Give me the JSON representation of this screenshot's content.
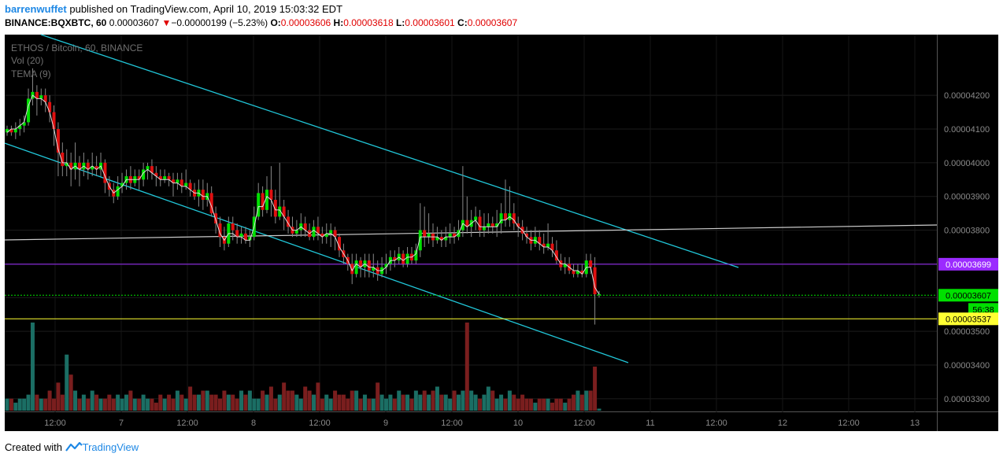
{
  "header": {
    "user": "barrenwuffet",
    "published_text": "published on TradingView.com, April 10, 2019 15:03:32 EDT",
    "symbol": "BINANCE:BQXBTC, 60",
    "last": "0.00003607",
    "change_arrow": "▼",
    "change": "−0.00000199 (−5.23%)",
    "o_label": "O:",
    "o": "0.00003606",
    "h_label": "H:",
    "h": "0.00003618",
    "l_label": "L:",
    "l": "0.00003601",
    "c_label": "C:",
    "c": "0.00003607"
  },
  "legend": {
    "line1": "ETHOS / Bitcoin, 60, BINANCE",
    "line2": "Vol (20)",
    "line3": "TEMA (9)"
  },
  "footer": {
    "created_with": "Created with",
    "brand": "TradingView"
  },
  "colors": {
    "background": "#000000",
    "up": "#00e000",
    "down": "#e01010",
    "vol_up": "#1b6e64",
    "vol_down": "#7a1e1e",
    "channel": "#21c7d9",
    "horizontal_line": "#cccccc",
    "purple_level": "#9b2bff",
    "current_price": "#00e000",
    "yellow_level": "#ffff33"
  },
  "chart_data": {
    "type": "candlestick",
    "y_axis": {
      "range": [
        3.26e-05,
        4.38e-05
      ],
      "ticks": [
        "0.00004200",
        "0.00004100",
        "0.00004000",
        "0.00003900",
        "0.00003800",
        "0.00003700",
        "0.00003600",
        "0.00003500",
        "0.00003400",
        "0.00003300"
      ]
    },
    "x_axis": {
      "ticks": [
        "12:00",
        "7",
        "12:00",
        "8",
        "12:00",
        "9",
        "12:00",
        "10",
        "12:00",
        "11",
        "12:00",
        "12",
        "12:00",
        "13"
      ]
    },
    "price_labels": {
      "purple": "0.00003699",
      "current": "0.00003607",
      "countdown": "56:38",
      "yellow": "0.00003537"
    },
    "levels": {
      "purple": 3.699e-05,
      "current": 3.607e-05,
      "yellow": 3.537e-05
    },
    "candles": [
      [
        4.09e-05,
        4.1e-05,
        4.11e-05,
        4.08e-05
      ],
      [
        4.1e-05,
        4.09e-05,
        4.11e-05,
        4.08e-05
      ],
      [
        4.09e-05,
        4.1e-05,
        4.12e-05,
        4.07e-05
      ],
      [
        4.1e-05,
        4.11e-05,
        4.13e-05,
        4.08e-05
      ],
      [
        4.11e-05,
        4.12e-05,
        4.14e-05,
        4.09e-05
      ],
      [
        4.12e-05,
        4.19e-05,
        4.22e-05,
        4.11e-05
      ],
      [
        4.19e-05,
        4.21e-05,
        4.28e-05,
        4.17e-05
      ],
      [
        4.21e-05,
        4.19e-05,
        4.23e-05,
        4.14e-05
      ],
      [
        4.19e-05,
        4.2e-05,
        4.22e-05,
        4.17e-05
      ],
      [
        4.2e-05,
        4.18e-05,
        4.22e-05,
        4.15e-05
      ],
      [
        4.18e-05,
        4.15e-05,
        4.2e-05,
        4.12e-05
      ],
      [
        4.15e-05,
        4.1e-05,
        4.17e-05,
        4.05e-05
      ],
      [
        4.1e-05,
        4.03e-05,
        4.12e-05,
        3.96e-05
      ],
      [
        4.03e-05,
        3.99e-05,
        4.06e-05,
        3.96e-05
      ],
      [
        3.99e-05,
        4e-05,
        4.04e-05,
        3.96e-05
      ],
      [
        4e-05,
        3.98e-05,
        4.03e-05,
        3.93e-05
      ],
      [
        3.98e-05,
        4e-05,
        4.06e-05,
        3.95e-05
      ],
      [
        4e-05,
        3.98e-05,
        4.02e-05,
        3.93e-05
      ],
      [
        3.98e-05,
        4e-05,
        4.03e-05,
        3.96e-05
      ],
      [
        4e-05,
        3.98e-05,
        4.01e-05,
        3.95e-05
      ],
      [
        3.98e-05,
        3.99e-05,
        4.03e-05,
        3.96e-05
      ],
      [
        3.99e-05,
        3.98e-05,
        4.02e-05,
        3.96e-05
      ],
      [
        3.98e-05,
        4e-05,
        4.03e-05,
        3.96e-05
      ],
      [
        4e-05,
        3.94e-05,
        4.01e-05,
        3.91e-05
      ],
      [
        3.94e-05,
        3.92e-05,
        3.96e-05,
        3.9e-05
      ],
      [
        3.92e-05,
        3.9e-05,
        3.94e-05,
        3.88e-05
      ],
      [
        3.9e-05,
        3.93e-05,
        3.96e-05,
        3.89e-05
      ],
      [
        3.93e-05,
        3.94e-05,
        3.97e-05,
        3.91e-05
      ],
      [
        3.94e-05,
        3.96e-05,
        3.98e-05,
        3.92e-05
      ],
      [
        3.96e-05,
        3.94e-05,
        3.99e-05,
        3.92e-05
      ],
      [
        3.94e-05,
        3.96e-05,
        3.98e-05,
        3.93e-05
      ],
      [
        3.96e-05,
        3.95e-05,
        3.98e-05,
        3.92e-05
      ],
      [
        3.95e-05,
        3.98e-05,
        4e-05,
        3.93e-05
      ],
      [
        3.98e-05,
        3.99e-05,
        4e-05,
        3.95e-05
      ],
      [
        3.99e-05,
        3.97e-05,
        4.01e-05,
        3.95e-05
      ],
      [
        3.97e-05,
        3.96e-05,
        3.99e-05,
        3.93e-05
      ],
      [
        3.96e-05,
        3.95e-05,
        3.98e-05,
        3.93e-05
      ],
      [
        3.95e-05,
        3.96e-05,
        3.98e-05,
        3.94e-05
      ],
      [
        3.96e-05,
        3.95e-05,
        3.97e-05,
        3.93e-05
      ],
      [
        3.95e-05,
        3.94e-05,
        3.97e-05,
        3.9e-05
      ],
      [
        3.94e-05,
        3.95e-05,
        3.97e-05,
        3.92e-05
      ],
      [
        3.95e-05,
        3.93e-05,
        3.97e-05,
        3.91e-05
      ],
      [
        3.93e-05,
        3.94e-05,
        3.98e-05,
        3.92e-05
      ],
      [
        3.94e-05,
        3.92e-05,
        3.95e-05,
        3.9e-05
      ],
      [
        3.92e-05,
        3.9e-05,
        3.94e-05,
        3.89e-05
      ],
      [
        3.9e-05,
        3.92e-05,
        3.95e-05,
        3.87e-05
      ],
      [
        3.92e-05,
        3.89e-05,
        3.95e-05,
        3.86e-05
      ],
      [
        3.89e-05,
        3.91e-05,
        3.94e-05,
        3.87e-05
      ],
      [
        3.91e-05,
        3.85e-05,
        3.93e-05,
        3.84e-05
      ],
      [
        3.85e-05,
        3.82e-05,
        3.87e-05,
        3.79e-05
      ],
      [
        3.82e-05,
        3.78e-05,
        3.84e-05,
        3.75e-05
      ],
      [
        3.78e-05,
        3.76e-05,
        3.81e-05,
        3.74e-05
      ],
      [
        3.76e-05,
        3.82e-05,
        3.84e-05,
        3.75e-05
      ],
      [
        3.82e-05,
        3.8e-05,
        3.84e-05,
        3.77e-05
      ],
      [
        3.8e-05,
        3.78e-05,
        3.82e-05,
        3.76e-05
      ],
      [
        3.78e-05,
        3.79e-05,
        3.81e-05,
        3.76e-05
      ],
      [
        3.79e-05,
        3.77e-05,
        3.81e-05,
        3.76e-05
      ],
      [
        3.77e-05,
        3.78e-05,
        3.8e-05,
        3.75e-05
      ],
      [
        3.78e-05,
        3.84e-05,
        3.87e-05,
        3.77e-05
      ],
      [
        3.84e-05,
        3.91e-05,
        3.94e-05,
        3.83e-05
      ],
      [
        3.91e-05,
        3.86e-05,
        3.93e-05,
        3.84e-05
      ],
      [
        3.86e-05,
        3.92e-05,
        3.96e-05,
        3.85e-05
      ],
      [
        3.92e-05,
        3.89e-05,
        3.99e-05,
        3.84e-05
      ],
      [
        3.89e-05,
        3.84e-05,
        3.92e-05,
        3.82e-05
      ],
      [
        3.84e-05,
        3.87e-05,
        4e-05,
        3.83e-05
      ],
      [
        3.87e-05,
        3.84e-05,
        3.89e-05,
        3.8e-05
      ],
      [
        3.84e-05,
        3.81e-05,
        3.86e-05,
        3.79e-05
      ],
      [
        3.81e-05,
        3.79e-05,
        3.84e-05,
        3.78e-05
      ],
      [
        3.79e-05,
        3.8e-05,
        3.83e-05,
        3.78e-05
      ],
      [
        3.8e-05,
        3.82e-05,
        3.85e-05,
        3.78e-05
      ],
      [
        3.82e-05,
        3.8e-05,
        3.84e-05,
        3.78e-05
      ],
      [
        3.8e-05,
        3.78e-05,
        3.82e-05,
        3.77e-05
      ],
      [
        3.78e-05,
        3.81e-05,
        3.83e-05,
        3.77e-05
      ],
      [
        3.81e-05,
        3.79e-05,
        3.84e-05,
        3.77e-05
      ],
      [
        3.79e-05,
        3.78e-05,
        3.81e-05,
        3.76e-05
      ],
      [
        3.78e-05,
        3.79e-05,
        3.82e-05,
        3.76e-05
      ],
      [
        3.79e-05,
        3.8e-05,
        3.82e-05,
        3.75e-05
      ],
      [
        3.8e-05,
        3.78e-05,
        3.81e-05,
        3.74e-05
      ],
      [
        3.78e-05,
        3.74e-05,
        3.79e-05,
        3.72e-05
      ],
      [
        3.74e-05,
        3.72e-05,
        3.76e-05,
        3.7e-05
      ],
      [
        3.72e-05,
        3.7e-05,
        3.73e-05,
        3.68e-05
      ],
      [
        3.7e-05,
        3.67e-05,
        3.73e-05,
        3.64e-05
      ],
      [
        3.67e-05,
        3.71e-05,
        3.73e-05,
        3.66e-05
      ],
      [
        3.71e-05,
        3.69e-05,
        3.72e-05,
        3.66e-05
      ],
      [
        3.69e-05,
        3.71e-05,
        3.73e-05,
        3.66e-05
      ],
      [
        3.71e-05,
        3.68e-05,
        3.73e-05,
        3.66e-05
      ],
      [
        3.68e-05,
        3.69e-05,
        3.73e-05,
        3.66e-05
      ],
      [
        3.69e-05,
        3.67e-05,
        3.71e-05,
        3.65e-05
      ],
      [
        3.67e-05,
        3.69e-05,
        3.72e-05,
        3.66e-05
      ],
      [
        3.69e-05,
        3.7e-05,
        3.73e-05,
        3.67e-05
      ],
      [
        3.7e-05,
        3.72e-05,
        3.74e-05,
        3.68e-05
      ],
      [
        3.72e-05,
        3.71e-05,
        3.74e-05,
        3.69e-05
      ],
      [
        3.71e-05,
        3.73e-05,
        3.75e-05,
        3.7e-05
      ],
      [
        3.73e-05,
        3.7e-05,
        3.74e-05,
        3.69e-05
      ],
      [
        3.7e-05,
        3.73e-05,
        3.75e-05,
        3.69e-05
      ],
      [
        3.73e-05,
        3.71e-05,
        3.75e-05,
        3.7e-05
      ],
      [
        3.71e-05,
        3.74e-05,
        3.76e-05,
        3.7e-05
      ],
      [
        3.74e-05,
        3.8e-05,
        3.88e-05,
        3.72e-05
      ],
      [
        3.8e-05,
        3.78e-05,
        3.87e-05,
        3.75e-05
      ],
      [
        3.78e-05,
        3.79e-05,
        3.85e-05,
        3.76e-05
      ],
      [
        3.79e-05,
        3.77e-05,
        3.82e-05,
        3.75e-05
      ],
      [
        3.77e-05,
        3.78e-05,
        3.81e-05,
        3.76e-05
      ],
      [
        3.78e-05,
        3.77e-05,
        3.8e-05,
        3.75e-05
      ],
      [
        3.77e-05,
        3.78e-05,
        3.81e-05,
        3.75e-05
      ],
      [
        3.78e-05,
        3.79e-05,
        3.82e-05,
        3.76e-05
      ],
      [
        3.79e-05,
        3.78e-05,
        3.81e-05,
        3.76e-05
      ],
      [
        3.78e-05,
        3.8e-05,
        3.83e-05,
        3.77e-05
      ],
      [
        3.8e-05,
        3.83e-05,
        3.99e-05,
        3.78e-05
      ],
      [
        3.83e-05,
        3.81e-05,
        3.9e-05,
        3.79e-05
      ],
      [
        3.81e-05,
        3.83e-05,
        3.86e-05,
        3.78e-05
      ],
      [
        3.83e-05,
        3.84e-05,
        3.87e-05,
        3.8e-05
      ],
      [
        3.84e-05,
        3.8e-05,
        3.86e-05,
        3.78e-05
      ],
      [
        3.8e-05,
        3.81e-05,
        3.85e-05,
        3.78e-05
      ],
      [
        3.81e-05,
        3.82e-05,
        3.85e-05,
        3.79e-05
      ],
      [
        3.82e-05,
        3.81e-05,
        3.84e-05,
        3.79e-05
      ],
      [
        3.81e-05,
        3.82e-05,
        3.86e-05,
        3.78e-05
      ],
      [
        3.82e-05,
        3.85e-05,
        3.88e-05,
        3.79e-05
      ],
      [
        3.85e-05,
        3.83e-05,
        3.95e-05,
        3.81e-05
      ],
      [
        3.83e-05,
        3.85e-05,
        3.93e-05,
        3.81e-05
      ],
      [
        3.85e-05,
        3.82e-05,
        3.88e-05,
        3.8e-05
      ],
      [
        3.82e-05,
        3.81e-05,
        3.84e-05,
        3.78e-05
      ],
      [
        3.81e-05,
        3.79e-05,
        3.83e-05,
        3.77e-05
      ],
      [
        3.79e-05,
        3.78e-05,
        3.81e-05,
        3.76e-05
      ],
      [
        3.78e-05,
        3.76e-05,
        3.8e-05,
        3.74e-05
      ],
      [
        3.76e-05,
        3.78e-05,
        3.81e-05,
        3.75e-05
      ],
      [
        3.78e-05,
        3.76e-05,
        3.8e-05,
        3.74e-05
      ],
      [
        3.76e-05,
        3.75e-05,
        3.79e-05,
        3.73e-05
      ],
      [
        3.75e-05,
        3.76e-05,
        3.82e-05,
        3.74e-05
      ],
      [
        3.76e-05,
        3.74e-05,
        3.78e-05,
        3.72e-05
      ],
      [
        3.74e-05,
        3.71e-05,
        3.77e-05,
        3.7e-05
      ],
      [
        3.71e-05,
        3.69e-05,
        3.73e-05,
        3.68e-05
      ],
      [
        3.69e-05,
        3.7e-05,
        3.72e-05,
        3.67e-05
      ],
      [
        3.7e-05,
        3.68e-05,
        3.72e-05,
        3.67e-05
      ],
      [
        3.68e-05,
        3.67e-05,
        3.7e-05,
        3.66e-05
      ],
      [
        3.67e-05,
        3.68e-05,
        3.7e-05,
        3.66e-05
      ],
      [
        3.68e-05,
        3.67e-05,
        3.7e-05,
        3.66e-05
      ],
      [
        3.67e-05,
        3.71e-05,
        3.73e-05,
        3.66e-05
      ],
      [
        3.71e-05,
        3.69e-05,
        3.73e-05,
        3.67e-05
      ],
      [
        3.69e-05,
        3.61e-05,
        3.72e-05,
        3.52e-05
      ],
      [
        3.61e-05,
        3.61e-05,
        3.62e-05,
        3.6e-05
      ]
    ],
    "volume": [
      3,
      3,
      2,
      3,
      3,
      4,
      22,
      4,
      3,
      3,
      5,
      3,
      7,
      4,
      14,
      9,
      5,
      3,
      4,
      3,
      5,
      4,
      3,
      3,
      4,
      3,
      4,
      3,
      4,
      5,
      3,
      3,
      4,
      3,
      3,
      2,
      4,
      3,
      4,
      3,
      5,
      4,
      3,
      6,
      4,
      4,
      5,
      5,
      4,
      4,
      3,
      5,
      4,
      4,
      3,
      5,
      4,
      5,
      3,
      3,
      5,
      4,
      6,
      3,
      4,
      7,
      5,
      5,
      4,
      3,
      6,
      5,
      4,
      7,
      3,
      4,
      3,
      5,
      4,
      4,
      3,
      5,
      5,
      3,
      4,
      3,
      3,
      7,
      4,
      3,
      4,
      3,
      5,
      4,
      4,
      3,
      5,
      4,
      5,
      4,
      5,
      6,
      4,
      4,
      3,
      5,
      4,
      5,
      22,
      5,
      4,
      3,
      4,
      6,
      5,
      3,
      4,
      3,
      5,
      4,
      3,
      4,
      3,
      3,
      2,
      3,
      3,
      3,
      2,
      3,
      3,
      2,
      3,
      4,
      5,
      4,
      5,
      5,
      11,
      0.5
    ],
    "tema": [
      4.09e-05,
      4.1e-05,
      4.1e-05,
      4.11e-05,
      4.12e-05,
      4.17e-05,
      4.2e-05,
      4.19e-05,
      4.19e-05,
      4.18e-05,
      4.15e-05,
      4.1e-05,
      4.04e-05,
      4e-05,
      4e-05,
      3.98e-05,
      3.99e-05,
      3.98e-05,
      3.99e-05,
      3.98e-05,
      3.99e-05,
      3.98e-05,
      3.99e-05,
      3.96e-05,
      3.93e-05,
      3.91e-05,
      3.92e-05,
      3.93e-05,
      3.95e-05,
      3.95e-05,
      3.95e-05,
      3.95e-05,
      3.97e-05,
      3.98e-05,
      3.97e-05,
      3.96e-05,
      3.95e-05,
      3.95e-05,
      3.95e-05,
      3.94e-05,
      3.94e-05,
      3.93e-05,
      3.93e-05,
      3.92e-05,
      3.91e-05,
      3.91e-05,
      3.9e-05,
      3.9e-05,
      3.87e-05,
      3.83e-05,
      3.79e-05,
      3.77e-05,
      3.79e-05,
      3.79e-05,
      3.78e-05,
      3.78e-05,
      3.77e-05,
      3.77e-05,
      3.81e-05,
      3.87e-05,
      3.87e-05,
      3.9e-05,
      3.89e-05,
      3.86e-05,
      3.86e-05,
      3.84e-05,
      3.82e-05,
      3.8e-05,
      3.8e-05,
      3.81e-05,
      3.8e-05,
      3.79e-05,
      3.8e-05,
      3.79e-05,
      3.78e-05,
      3.79e-05,
      3.79e-05,
      3.78e-05,
      3.75e-05,
      3.73e-05,
      3.71e-05,
      3.68e-05,
      3.7e-05,
      3.69e-05,
      3.7e-05,
      3.69e-05,
      3.69e-05,
      3.68e-05,
      3.68e-05,
      3.69e-05,
      3.71e-05,
      3.71e-05,
      3.72e-05,
      3.71e-05,
      3.72e-05,
      3.72e-05,
      3.73e-05,
      3.78e-05,
      3.78e-05,
      3.78e-05,
      3.78e-05,
      3.78e-05,
      3.77e-05,
      3.78e-05,
      3.78e-05,
      3.78e-05,
      3.79e-05,
      3.82e-05,
      3.81e-05,
      3.82e-05,
      3.83e-05,
      3.81e-05,
      3.81e-05,
      3.81e-05,
      3.81e-05,
      3.81e-05,
      3.83e-05,
      3.83e-05,
      3.84e-05,
      3.83e-05,
      3.81e-05,
      3.8e-05,
      3.78e-05,
      3.77e-05,
      3.77e-05,
      3.76e-05,
      3.75e-05,
      3.75e-05,
      3.74e-05,
      3.72e-05,
      3.7e-05,
      3.7e-05,
      3.69e-05,
      3.68e-05,
      3.68e-05,
      3.67e-05,
      3.69e-05,
      3.69e-05,
      3.63e-05,
      3.61e-05
    ]
  }
}
